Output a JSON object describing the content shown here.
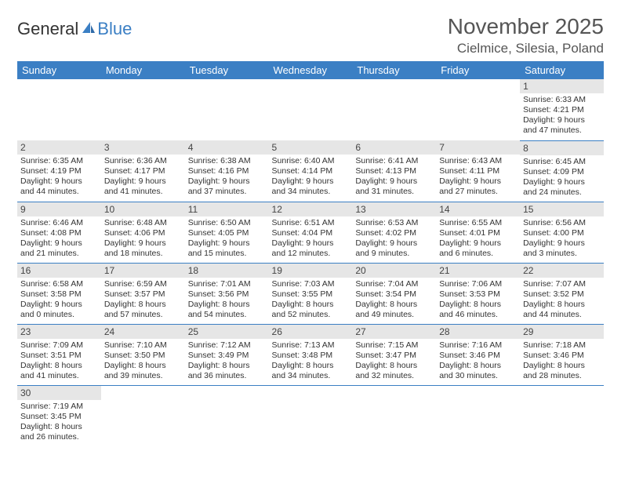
{
  "branding": {
    "logo_text_1": "General",
    "logo_text_2": "Blue",
    "logo_color_1": "#333333",
    "logo_color_2": "#3b7fc4"
  },
  "title": {
    "month_year": "November 2025",
    "location": "Cielmice, Silesia, Poland"
  },
  "colors": {
    "header_bg": "#3b7fc4",
    "header_text": "#ffffff",
    "daynum_bg": "#e6e6e6",
    "cell_border": "#3b7fc4",
    "text": "#333333"
  },
  "weekdays": [
    "Sunday",
    "Monday",
    "Tuesday",
    "Wednesday",
    "Thursday",
    "Friday",
    "Saturday"
  ],
  "grid": [
    [
      {
        "n": "",
        "sr": "",
        "ss": "",
        "d1": "",
        "d2": ""
      },
      {
        "n": "",
        "sr": "",
        "ss": "",
        "d1": "",
        "d2": ""
      },
      {
        "n": "",
        "sr": "",
        "ss": "",
        "d1": "",
        "d2": ""
      },
      {
        "n": "",
        "sr": "",
        "ss": "",
        "d1": "",
        "d2": ""
      },
      {
        "n": "",
        "sr": "",
        "ss": "",
        "d1": "",
        "d2": ""
      },
      {
        "n": "",
        "sr": "",
        "ss": "",
        "d1": "",
        "d2": ""
      },
      {
        "n": "1",
        "sr": "Sunrise: 6:33 AM",
        "ss": "Sunset: 4:21 PM",
        "d1": "Daylight: 9 hours",
        "d2": "and 47 minutes."
      }
    ],
    [
      {
        "n": "2",
        "sr": "Sunrise: 6:35 AM",
        "ss": "Sunset: 4:19 PM",
        "d1": "Daylight: 9 hours",
        "d2": "and 44 minutes."
      },
      {
        "n": "3",
        "sr": "Sunrise: 6:36 AM",
        "ss": "Sunset: 4:17 PM",
        "d1": "Daylight: 9 hours",
        "d2": "and 41 minutes."
      },
      {
        "n": "4",
        "sr": "Sunrise: 6:38 AM",
        "ss": "Sunset: 4:16 PM",
        "d1": "Daylight: 9 hours",
        "d2": "and 37 minutes."
      },
      {
        "n": "5",
        "sr": "Sunrise: 6:40 AM",
        "ss": "Sunset: 4:14 PM",
        "d1": "Daylight: 9 hours",
        "d2": "and 34 minutes."
      },
      {
        "n": "6",
        "sr": "Sunrise: 6:41 AM",
        "ss": "Sunset: 4:13 PM",
        "d1": "Daylight: 9 hours",
        "d2": "and 31 minutes."
      },
      {
        "n": "7",
        "sr": "Sunrise: 6:43 AM",
        "ss": "Sunset: 4:11 PM",
        "d1": "Daylight: 9 hours",
        "d2": "and 27 minutes."
      },
      {
        "n": "8",
        "sr": "Sunrise: 6:45 AM",
        "ss": "Sunset: 4:09 PM",
        "d1": "Daylight: 9 hours",
        "d2": "and 24 minutes."
      }
    ],
    [
      {
        "n": "9",
        "sr": "Sunrise: 6:46 AM",
        "ss": "Sunset: 4:08 PM",
        "d1": "Daylight: 9 hours",
        "d2": "and 21 minutes."
      },
      {
        "n": "10",
        "sr": "Sunrise: 6:48 AM",
        "ss": "Sunset: 4:06 PM",
        "d1": "Daylight: 9 hours",
        "d2": "and 18 minutes."
      },
      {
        "n": "11",
        "sr": "Sunrise: 6:50 AM",
        "ss": "Sunset: 4:05 PM",
        "d1": "Daylight: 9 hours",
        "d2": "and 15 minutes."
      },
      {
        "n": "12",
        "sr": "Sunrise: 6:51 AM",
        "ss": "Sunset: 4:04 PM",
        "d1": "Daylight: 9 hours",
        "d2": "and 12 minutes."
      },
      {
        "n": "13",
        "sr": "Sunrise: 6:53 AM",
        "ss": "Sunset: 4:02 PM",
        "d1": "Daylight: 9 hours",
        "d2": "and 9 minutes."
      },
      {
        "n": "14",
        "sr": "Sunrise: 6:55 AM",
        "ss": "Sunset: 4:01 PM",
        "d1": "Daylight: 9 hours",
        "d2": "and 6 minutes."
      },
      {
        "n": "15",
        "sr": "Sunrise: 6:56 AM",
        "ss": "Sunset: 4:00 PM",
        "d1": "Daylight: 9 hours",
        "d2": "and 3 minutes."
      }
    ],
    [
      {
        "n": "16",
        "sr": "Sunrise: 6:58 AM",
        "ss": "Sunset: 3:58 PM",
        "d1": "Daylight: 9 hours",
        "d2": "and 0 minutes."
      },
      {
        "n": "17",
        "sr": "Sunrise: 6:59 AM",
        "ss": "Sunset: 3:57 PM",
        "d1": "Daylight: 8 hours",
        "d2": "and 57 minutes."
      },
      {
        "n": "18",
        "sr": "Sunrise: 7:01 AM",
        "ss": "Sunset: 3:56 PM",
        "d1": "Daylight: 8 hours",
        "d2": "and 54 minutes."
      },
      {
        "n": "19",
        "sr": "Sunrise: 7:03 AM",
        "ss": "Sunset: 3:55 PM",
        "d1": "Daylight: 8 hours",
        "d2": "and 52 minutes."
      },
      {
        "n": "20",
        "sr": "Sunrise: 7:04 AM",
        "ss": "Sunset: 3:54 PM",
        "d1": "Daylight: 8 hours",
        "d2": "and 49 minutes."
      },
      {
        "n": "21",
        "sr": "Sunrise: 7:06 AM",
        "ss": "Sunset: 3:53 PM",
        "d1": "Daylight: 8 hours",
        "d2": "and 46 minutes."
      },
      {
        "n": "22",
        "sr": "Sunrise: 7:07 AM",
        "ss": "Sunset: 3:52 PM",
        "d1": "Daylight: 8 hours",
        "d2": "and 44 minutes."
      }
    ],
    [
      {
        "n": "23",
        "sr": "Sunrise: 7:09 AM",
        "ss": "Sunset: 3:51 PM",
        "d1": "Daylight: 8 hours",
        "d2": "and 41 minutes."
      },
      {
        "n": "24",
        "sr": "Sunrise: 7:10 AM",
        "ss": "Sunset: 3:50 PM",
        "d1": "Daylight: 8 hours",
        "d2": "and 39 minutes."
      },
      {
        "n": "25",
        "sr": "Sunrise: 7:12 AM",
        "ss": "Sunset: 3:49 PM",
        "d1": "Daylight: 8 hours",
        "d2": "and 36 minutes."
      },
      {
        "n": "26",
        "sr": "Sunrise: 7:13 AM",
        "ss": "Sunset: 3:48 PM",
        "d1": "Daylight: 8 hours",
        "d2": "and 34 minutes."
      },
      {
        "n": "27",
        "sr": "Sunrise: 7:15 AM",
        "ss": "Sunset: 3:47 PM",
        "d1": "Daylight: 8 hours",
        "d2": "and 32 minutes."
      },
      {
        "n": "28",
        "sr": "Sunrise: 7:16 AM",
        "ss": "Sunset: 3:46 PM",
        "d1": "Daylight: 8 hours",
        "d2": "and 30 minutes."
      },
      {
        "n": "29",
        "sr": "Sunrise: 7:18 AM",
        "ss": "Sunset: 3:46 PM",
        "d1": "Daylight: 8 hours",
        "d2": "and 28 minutes."
      }
    ],
    [
      {
        "n": "30",
        "sr": "Sunrise: 7:19 AM",
        "ss": "Sunset: 3:45 PM",
        "d1": "Daylight: 8 hours",
        "d2": "and 26 minutes."
      },
      {
        "n": "",
        "sr": "",
        "ss": "",
        "d1": "",
        "d2": ""
      },
      {
        "n": "",
        "sr": "",
        "ss": "",
        "d1": "",
        "d2": ""
      },
      {
        "n": "",
        "sr": "",
        "ss": "",
        "d1": "",
        "d2": ""
      },
      {
        "n": "",
        "sr": "",
        "ss": "",
        "d1": "",
        "d2": ""
      },
      {
        "n": "",
        "sr": "",
        "ss": "",
        "d1": "",
        "d2": ""
      },
      {
        "n": "",
        "sr": "",
        "ss": "",
        "d1": "",
        "d2": ""
      }
    ]
  ]
}
